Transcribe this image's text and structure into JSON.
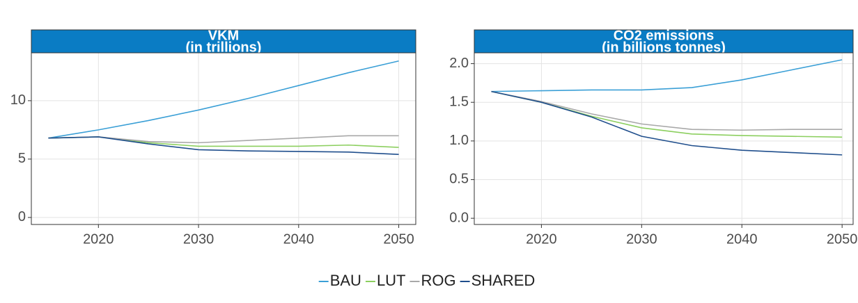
{
  "chart_data": [
    {
      "type": "line",
      "title": "VKM",
      "subtitle": "(in trillions)",
      "x": [
        2015,
        2020,
        2025,
        2030,
        2035,
        2040,
        2045,
        2050
      ],
      "xlim": [
        2013.3,
        2051.7
      ],
      "xticks": [
        2020,
        2030,
        2040,
        2050
      ],
      "ylim": [
        -0.6,
        14.1
      ],
      "yticks": [
        0,
        5,
        10
      ],
      "grid": true,
      "series": [
        {
          "name": "BAU",
          "color": "#3a9fd6",
          "values": [
            6.8,
            7.5,
            8.3,
            9.2,
            10.2,
            11.3,
            12.4,
            13.4
          ]
        },
        {
          "name": "LUT",
          "color": "#8ccf5f",
          "values": [
            6.8,
            6.9,
            6.4,
            6.1,
            6.1,
            6.1,
            6.2,
            6.0
          ]
        },
        {
          "name": "ROG",
          "color": "#a8a8a8",
          "values": [
            6.8,
            6.9,
            6.5,
            6.4,
            6.6,
            6.8,
            7.0,
            7.0
          ]
        },
        {
          "name": "SHARED",
          "color": "#1f4e8c",
          "values": [
            6.8,
            6.9,
            6.3,
            5.8,
            5.7,
            5.65,
            5.6,
            5.4
          ]
        }
      ]
    },
    {
      "type": "line",
      "title": "CO2 emissions",
      "subtitle": "(in billions tonnes)",
      "x": [
        2015,
        2020,
        2025,
        2030,
        2035,
        2040,
        2045,
        2050
      ],
      "xlim": [
        2013.3,
        2051.1
      ],
      "xticks": [
        2020,
        2030,
        2040,
        2050
      ],
      "ylim": [
        -0.08,
        2.14
      ],
      "yticks": [
        {
          "value": 0,
          "label": "0.0"
        },
        0.5,
        {
          "value": 1,
          "label": "1.0"
        },
        1.5,
        {
          "value": 2,
          "label": "2.0"
        }
      ],
      "grid": true,
      "series": [
        {
          "name": "BAU",
          "color": "#3a9fd6",
          "values": [
            1.64,
            1.65,
            1.66,
            1.66,
            1.69,
            1.79,
            1.92,
            2.05
          ]
        },
        {
          "name": "LUT",
          "color": "#8ccf5f",
          "values": [
            1.64,
            1.5,
            1.32,
            1.17,
            1.09,
            1.07,
            1.06,
            1.05
          ]
        },
        {
          "name": "ROG",
          "color": "#a8a8a8",
          "values": [
            1.64,
            1.51,
            1.35,
            1.22,
            1.15,
            1.14,
            1.15,
            1.15
          ]
        },
        {
          "name": "SHARED",
          "color": "#1f4e8c",
          "values": [
            1.64,
            1.5,
            1.31,
            1.06,
            0.94,
            0.88,
            0.85,
            0.82
          ]
        }
      ]
    }
  ]
}
